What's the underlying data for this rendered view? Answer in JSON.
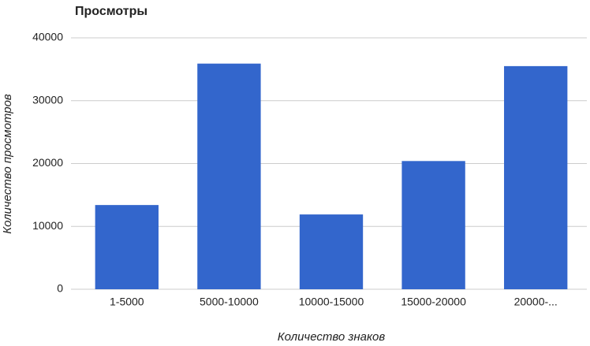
{
  "chart_data": {
    "type": "bar",
    "title": "Просмотры",
    "x_label": "Количество знаков",
    "y_label": "Количество просмотров",
    "categories": [
      "1-5000",
      "5000-10000",
      "10000-15000",
      "15000-20000",
      "20000-..."
    ],
    "values": [
      13400,
      35900,
      11900,
      20400,
      35500
    ],
    "color": "#3366cc",
    "ylim": [
      0,
      40000
    ],
    "yticks": [
      0,
      10000,
      20000,
      30000,
      40000
    ],
    "grid": true
  }
}
